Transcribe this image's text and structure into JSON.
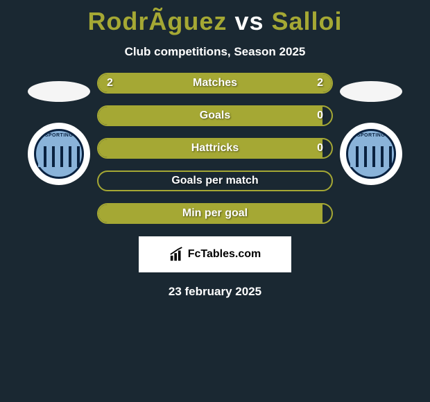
{
  "title": {
    "player1": "RodrÃ­guez",
    "vs": "vs",
    "player2": "Salloi"
  },
  "subtitle": "Club competitions, Season 2025",
  "stats": [
    {
      "label": "Matches",
      "left_value": "2",
      "right_value": "2",
      "left_pct": 50,
      "right_pct": 50,
      "fill_mode": "split"
    },
    {
      "label": "Goals",
      "left_value": "",
      "right_value": "0",
      "left_pct": 96,
      "right_pct": 0,
      "fill_mode": "left"
    },
    {
      "label": "Hattricks",
      "left_value": "",
      "right_value": "0",
      "left_pct": 96,
      "right_pct": 0,
      "fill_mode": "left"
    },
    {
      "label": "Goals per match",
      "left_value": "",
      "right_value": "",
      "left_pct": 0,
      "right_pct": 0,
      "fill_mode": "none"
    },
    {
      "label": "Min per goal",
      "left_value": "",
      "right_value": "",
      "left_pct": 96,
      "right_pct": 0,
      "fill_mode": "left"
    }
  ],
  "brand": {
    "name": "FcTables.com"
  },
  "date": "23 february 2025",
  "colors": {
    "background": "#1a2832",
    "accent": "#a5a834",
    "text": "#ffffff",
    "logo_bg": "#ffffff",
    "team_primary": "#0a2240",
    "team_secondary": "#8ab3d9"
  },
  "team_logo_text": "SPORTING"
}
